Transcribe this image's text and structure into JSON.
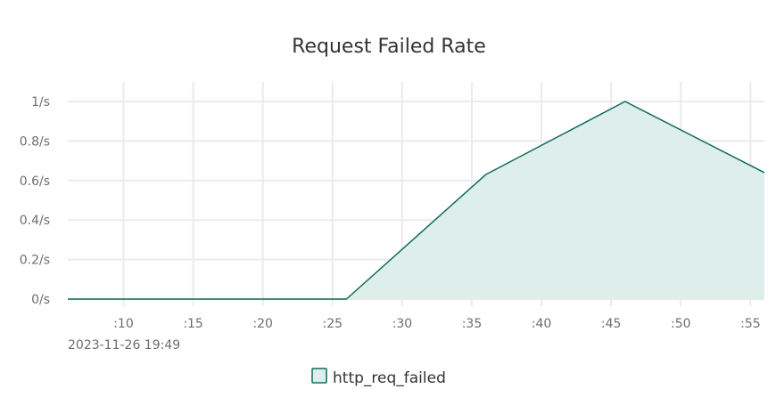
{
  "chart_data": {
    "type": "area",
    "title": "Request Failed Rate",
    "x_unit": "second of minute",
    "x_tick_labels": [
      ":10",
      ":15",
      ":20",
      ":25",
      ":30",
      ":35",
      ":40",
      ":45",
      ":50",
      ":55"
    ],
    "x_tick_values": [
      10,
      15,
      20,
      25,
      30,
      35,
      40,
      45,
      50,
      55
    ],
    "xlim": [
      6,
      56
    ],
    "y_tick_labels": [
      "0/s",
      "0.2/s",
      "0.4/s",
      "0.6/s",
      "0.8/s",
      "1/s"
    ],
    "y_tick_values": [
      0,
      0.2,
      0.4,
      0.6,
      0.8,
      1.0
    ],
    "ylim": [
      0,
      1.0
    ],
    "date_label": "2023-11-26 19:49",
    "grid": true,
    "legend_position": "bottom-center",
    "series": [
      {
        "name": "http_req_failed",
        "color": "#0b6b58",
        "fill_color": "#deeeeb",
        "x": [
          6,
          26,
          36,
          46,
          56
        ],
        "values": [
          0,
          0,
          0.63,
          1.0,
          0.64
        ]
      }
    ]
  }
}
